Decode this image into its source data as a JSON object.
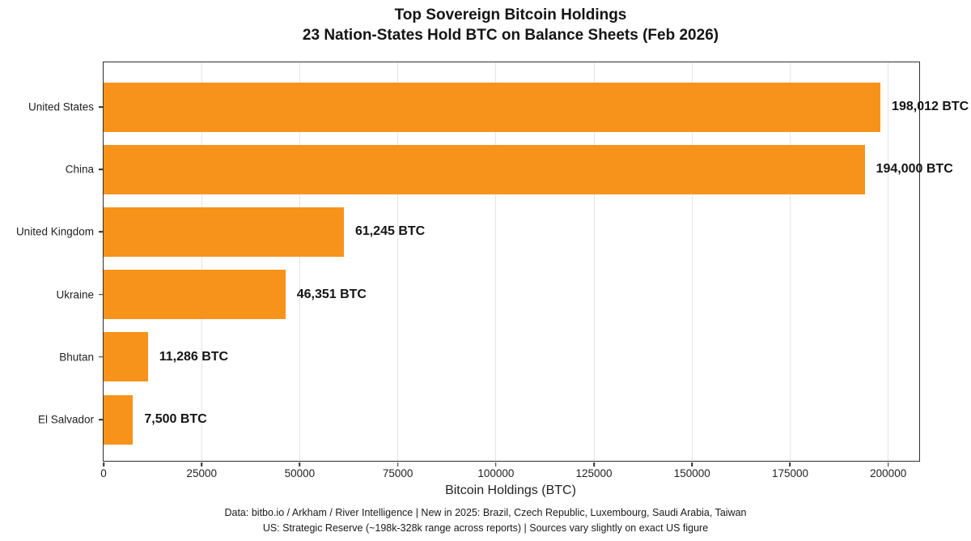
{
  "title": {
    "line1": "Top Sovereign Bitcoin Holdings",
    "line2": "23 Nation-States Hold BTC on Balance Sheets (Feb 2026)"
  },
  "chart_data": {
    "type": "bar",
    "orientation": "horizontal",
    "title": "Top Sovereign Bitcoin Holdings\n23 Nation-States Hold BTC on Balance Sheets (Feb 2026)",
    "categories": [
      "United States",
      "China",
      "United Kingdom",
      "Ukraine",
      "Bhutan",
      "El Salvador"
    ],
    "values": [
      198012,
      194000,
      61245,
      46351,
      11286,
      7500
    ],
    "value_labels": [
      "198,012 BTC",
      "194,000 BTC",
      "61,245 BTC",
      "46,351 BTC",
      "11,286 BTC",
      "7,500 BTC"
    ],
    "xlabel": "Bitcoin Holdings (BTC)",
    "ylabel": "",
    "xlim": [
      0,
      207900
    ],
    "xticks": [
      0,
      25000,
      50000,
      75000,
      100000,
      125000,
      150000,
      175000,
      200000
    ],
    "grid": "vertical",
    "legend": null,
    "bar_color": "#F7931A",
    "grid_color": "#e4e4e4",
    "spine_color": "#2e2e2e"
  },
  "footer": {
    "line1": "Data: bitbo.io / Arkham / River Intelligence | New in 2025: Brazil, Czech Republic, Luxembourg, Saudi Arabia, Taiwan",
    "line2": "US: Strategic Reserve (~198k-328k range across reports) | Sources vary slightly on exact US figure"
  }
}
